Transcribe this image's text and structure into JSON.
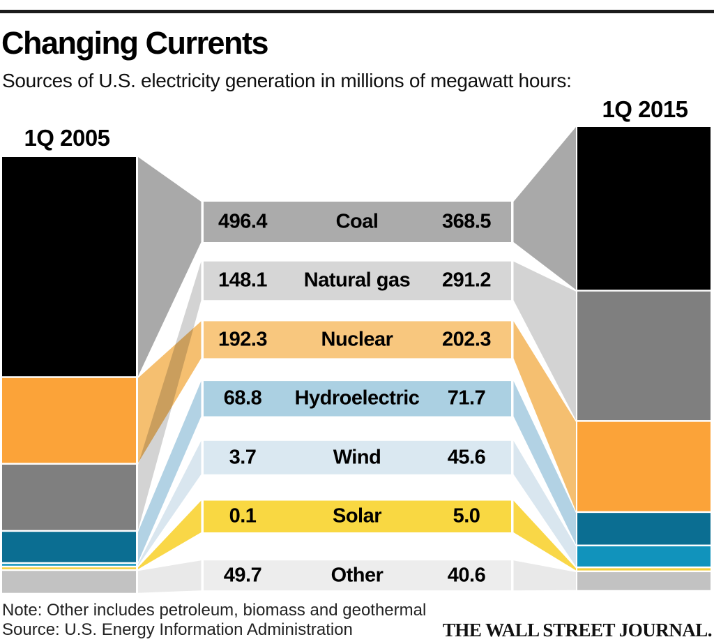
{
  "chart_data": {
    "type": "sankey",
    "title": "Changing Currents",
    "subtitle": "Sources of U.S. electricity generation in millions of megawatt hours:",
    "unit": "millions of megawatt hours",
    "columns": [
      {
        "label": "1Q 2005"
      },
      {
        "label": "1Q 2015"
      }
    ],
    "rows": [
      {
        "label": "Coal",
        "v2005": 496.4,
        "v2015": 368.5,
        "bar_color": "#000000",
        "band_color": "#ababab",
        "flow_color": "#a9a9a9"
      },
      {
        "label": "Natural gas",
        "v2005": 148.1,
        "v2015": 291.2,
        "bar_color": "#7f7f7f",
        "band_color": "#d6d6d6",
        "flow_color": "#d3d3d3"
      },
      {
        "label": "Nuclear",
        "v2005": 192.3,
        "v2015": 202.3,
        "bar_color": "#fba339",
        "band_color": "#f8c77e",
        "flow_color": "#f5bf70"
      },
      {
        "label": "Hydroelectric",
        "v2005": 68.8,
        "v2015": 71.7,
        "bar_color": "#0b6e92",
        "band_color": "#abd0e2",
        "flow_color": "#b2d2e4"
      },
      {
        "label": "Wind",
        "v2005": 3.7,
        "v2015": 45.6,
        "bar_color": "#1193bc",
        "band_color": "#dae8f1",
        "flow_color": "#d9e6ef"
      },
      {
        "label": "Solar",
        "v2005": 0.1,
        "v2015": 5.0,
        "bar_color": "#f4cf3b",
        "band_color": "#f9d842",
        "flow_color": "#f9d747"
      },
      {
        "label": "Other",
        "v2005": 49.7,
        "v2015": 40.6,
        "bar_color": "#c2c2c2",
        "band_color": "#ededed",
        "flow_color": "#e9e9e9"
      }
    ],
    "left_stack_order": [
      "Coal",
      "Nuclear",
      "Natural gas",
      "Hydroelectric",
      "Wind",
      "Solar",
      "Other"
    ],
    "right_stack_order": [
      "Coal",
      "Natural gas",
      "Nuclear",
      "Hydroelectric",
      "Wind",
      "Solar",
      "Other"
    ],
    "value_decimals": 1
  },
  "footer": {
    "note": "Note: Other includes petroleum, biomass and geothermal",
    "source": "Source: U.S. Energy Information Administration",
    "logo": "THE WALL STREET JOURNAL."
  }
}
